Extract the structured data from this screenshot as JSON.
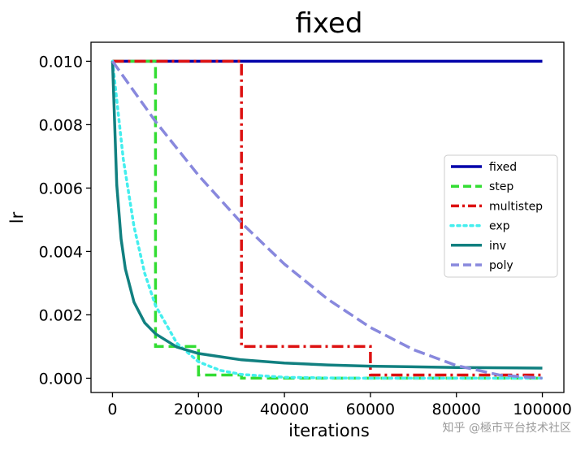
{
  "chart_data": {
    "type": "line",
    "title": "fixed",
    "xlabel": "iterations",
    "ylabel": "lr",
    "xlim": [
      -5000,
      105000
    ],
    "ylim": [
      -0.00045,
      0.0106
    ],
    "x_ticks": [
      0,
      20000,
      40000,
      60000,
      80000,
      100000
    ],
    "x_tick_labels": [
      "0",
      "20000",
      "40000",
      "60000",
      "80000",
      "100000"
    ],
    "y_ticks": [
      0.0,
      0.002,
      0.004,
      0.006,
      0.008,
      0.01
    ],
    "y_tick_labels": [
      "0.000",
      "0.002",
      "0.004",
      "0.006",
      "0.008",
      "0.010"
    ],
    "grid": false,
    "legend_position": "center-right",
    "series": [
      {
        "name": "fixed",
        "color": "#0000aa",
        "style": "solid",
        "x": [
          0,
          100000
        ],
        "y": [
          0.01,
          0.01
        ]
      },
      {
        "name": "step",
        "color": "#33dd33",
        "style": "dashed",
        "x": [
          0,
          10000,
          10000,
          20000,
          20000,
          30000,
          30000,
          100000
        ],
        "y": [
          0.01,
          0.01,
          0.001,
          0.001,
          0.0001,
          0.0001,
          0.0,
          0.0
        ]
      },
      {
        "name": "multistep",
        "color": "#dd1111",
        "style": "dashdot",
        "x": [
          0,
          30000,
          30000,
          60000,
          60000,
          100000
        ],
        "y": [
          0.01,
          0.01,
          0.001,
          0.001,
          0.0001,
          0.0001
        ]
      },
      {
        "name": "exp",
        "color": "#44eeee",
        "style": "dotted",
        "x": [
          0,
          2500,
          5000,
          7500,
          10000,
          15000,
          20000,
          25000,
          30000,
          40000,
          50000,
          60000,
          80000,
          100000
        ],
        "y": [
          0.01,
          0.00692,
          0.00479,
          0.00331,
          0.00229,
          0.0011,
          0.00052,
          0.00025,
          0.00012,
          3e-05,
          1e-05,
          0.0,
          0.0,
          0.0
        ]
      },
      {
        "name": "inv",
        "color": "#118080",
        "style": "solid",
        "x": [
          0,
          1000,
          2000,
          3000,
          5000,
          7500,
          10000,
          15000,
          20000,
          30000,
          40000,
          50000,
          60000,
          80000,
          100000
        ],
        "y": [
          0.01,
          0.0061,
          0.0044,
          0.00345,
          0.0024,
          0.00175,
          0.0014,
          0.00098,
          0.00078,
          0.00058,
          0.00048,
          0.00042,
          0.00038,
          0.00034,
          0.00032
        ]
      },
      {
        "name": "poly",
        "color": "#8888dd",
        "style": "dashed",
        "x": [
          0,
          10000,
          20000,
          30000,
          40000,
          50000,
          60000,
          70000,
          80000,
          90000,
          100000
        ],
        "y": [
          0.01,
          0.0081,
          0.0064,
          0.0049,
          0.0036,
          0.0025,
          0.0016,
          0.0009,
          0.0004,
          0.0001,
          0.0
        ]
      }
    ]
  },
  "watermark": "知乎 @極市平台技术社区"
}
